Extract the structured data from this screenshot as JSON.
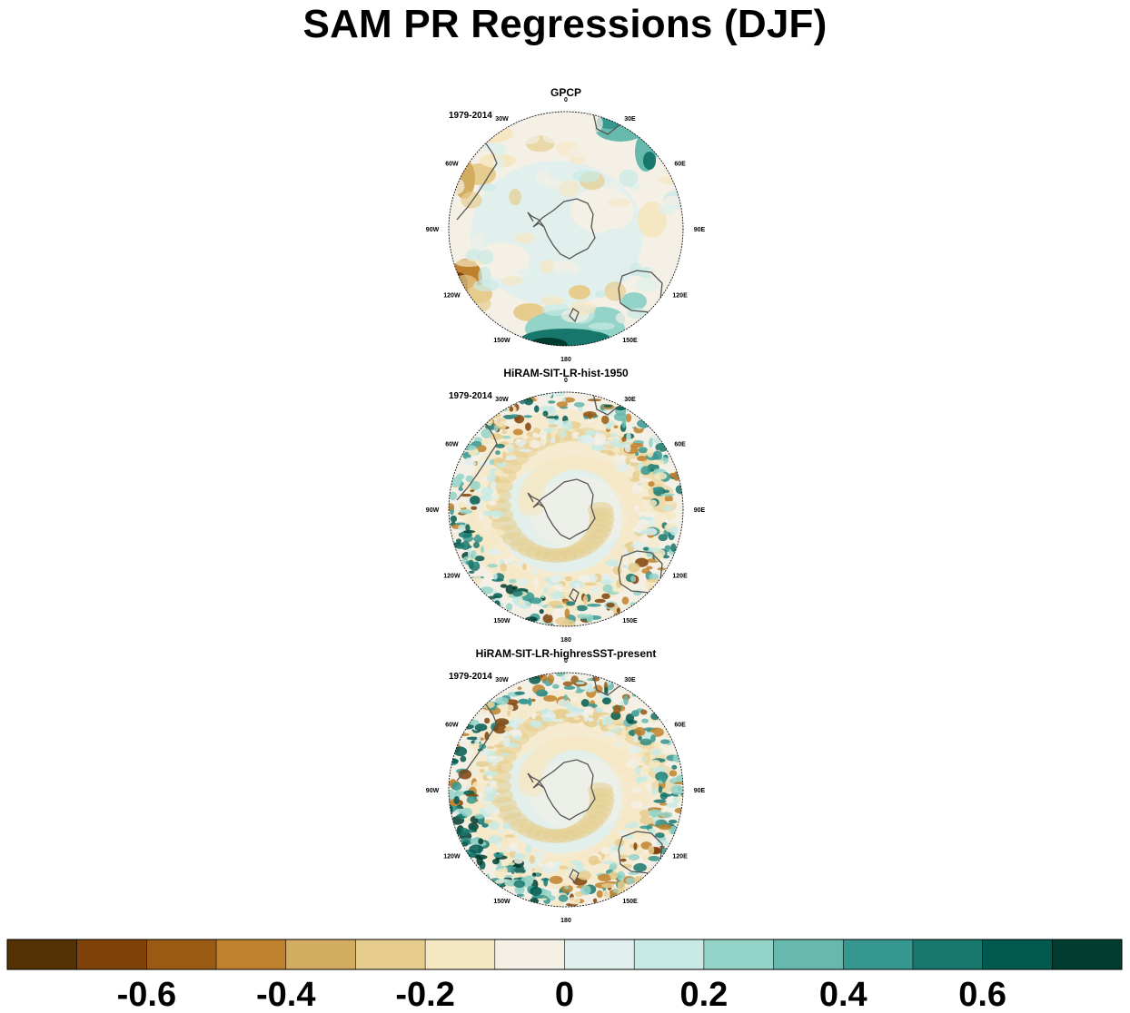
{
  "title": "SAM PR Regressions (DJF)",
  "panels": [
    {
      "name": "GPCP",
      "period": "1979-2014",
      "pattern": "smooth"
    },
    {
      "name": "HiRAM-SIT-LR-hist-1950",
      "period": "1979-2014",
      "pattern": "noisy"
    },
    {
      "name": "HiRAM-SIT-LR-highresSST-present",
      "period": "1979-2014",
      "pattern": "noisy2"
    }
  ],
  "lon_labels": [
    "0",
    "30E",
    "60E",
    "90E",
    "120E",
    "150E",
    "180",
    "150W",
    "120W",
    "90W",
    "60W",
    "30W"
  ],
  "colorbar": {
    "colors": [
      "#543005",
      "#7f4209",
      "#995a14",
      "#bf812d",
      "#d2ad60",
      "#e6cd8e",
      "#f5e7c2",
      "#f4f0e6",
      "#e0efed",
      "#c7eae5",
      "#93d3c8",
      "#67b8ad",
      "#35978f",
      "#18776d",
      "#01594f",
      "#003c30"
    ],
    "tick_labels": [
      "-0.6",
      "-0.4",
      "-0.2",
      "0",
      "0.2",
      "0.4",
      "0.6"
    ]
  }
}
